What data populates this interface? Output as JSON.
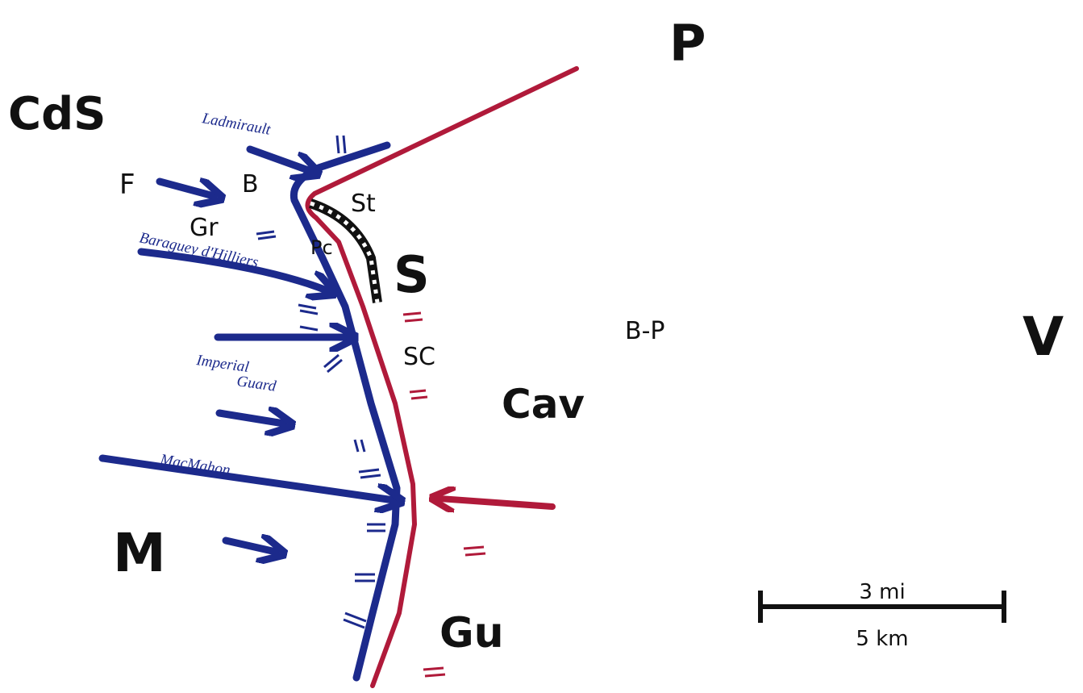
{
  "places": {
    "p": "P",
    "cds": "CdS",
    "f": "F",
    "b": "B",
    "st": "St",
    "gr": "Gr",
    "pc": "Pc",
    "s": "S",
    "bp": "B-P",
    "v": "V",
    "sc": "SC",
    "cav": "Cav",
    "m": "M",
    "gu": "Gu"
  },
  "corps": {
    "ladmirault": "Ladmirault",
    "baraguey": "Baraguey d'Hilliers",
    "guard1": "Imperial",
    "guard2": "Guard",
    "macmahon": "MacMahon"
  },
  "scale": {
    "top": "3 mi",
    "bottom": "5 km"
  }
}
